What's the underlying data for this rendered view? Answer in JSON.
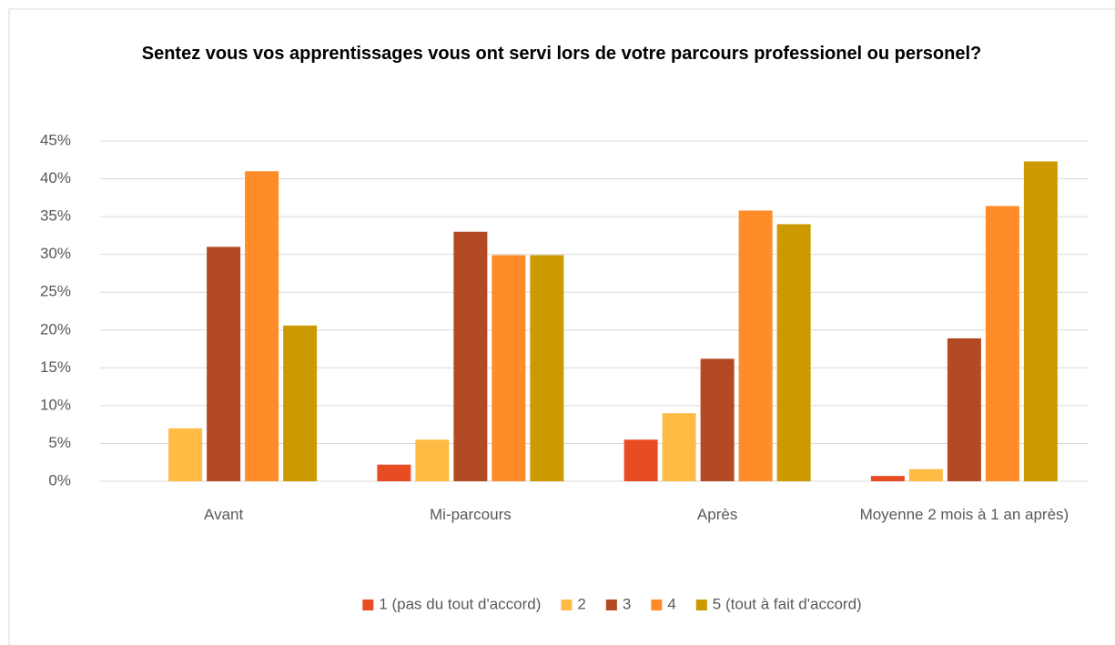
{
  "chart_data": {
    "type": "bar",
    "title": "Sentez vous vos apprentissages  vous ont servi lors de votre parcours professionel ou personel?",
    "categories": [
      "Avant",
      "Mi-parcours",
      "Après",
      "Moyenne 2 mois à 1 an après)"
    ],
    "series": [
      {
        "name": "1 (pas du tout d'accord)",
        "color": "#e84c22",
        "values": [
          0,
          2.2,
          5.5,
          0.7
        ]
      },
      {
        "name": "2",
        "color": "#ffbb44",
        "values": [
          7,
          5.5,
          9,
          1.6
        ]
      },
      {
        "name": "3",
        "color": "#b34a24",
        "values": [
          31,
          33,
          16.2,
          18.9
        ]
      },
      {
        "name": "4",
        "color": "#ff8c28",
        "values": [
          41,
          29.9,
          35.8,
          36.4
        ]
      },
      {
        "name": "5 (tout à fait d'accord)",
        "color": "#cc9900",
        "values": [
          20.6,
          29.9,
          34,
          42.3
        ]
      }
    ],
    "ylim": [
      0,
      45
    ],
    "yticks": [
      {
        "value": 0,
        "label": "0%"
      },
      {
        "value": 5,
        "label": "5%"
      },
      {
        "value": 10,
        "label": "10%"
      },
      {
        "value": 15,
        "label": "15%"
      },
      {
        "value": 20,
        "label": "20%"
      },
      {
        "value": 25,
        "label": "25%"
      },
      {
        "value": 30,
        "label": "30%"
      },
      {
        "value": 35,
        "label": "35%"
      },
      {
        "value": 40,
        "label": "40%"
      },
      {
        "value": 45,
        "label": "45%"
      }
    ],
    "grid": true,
    "legend": "bottom"
  }
}
